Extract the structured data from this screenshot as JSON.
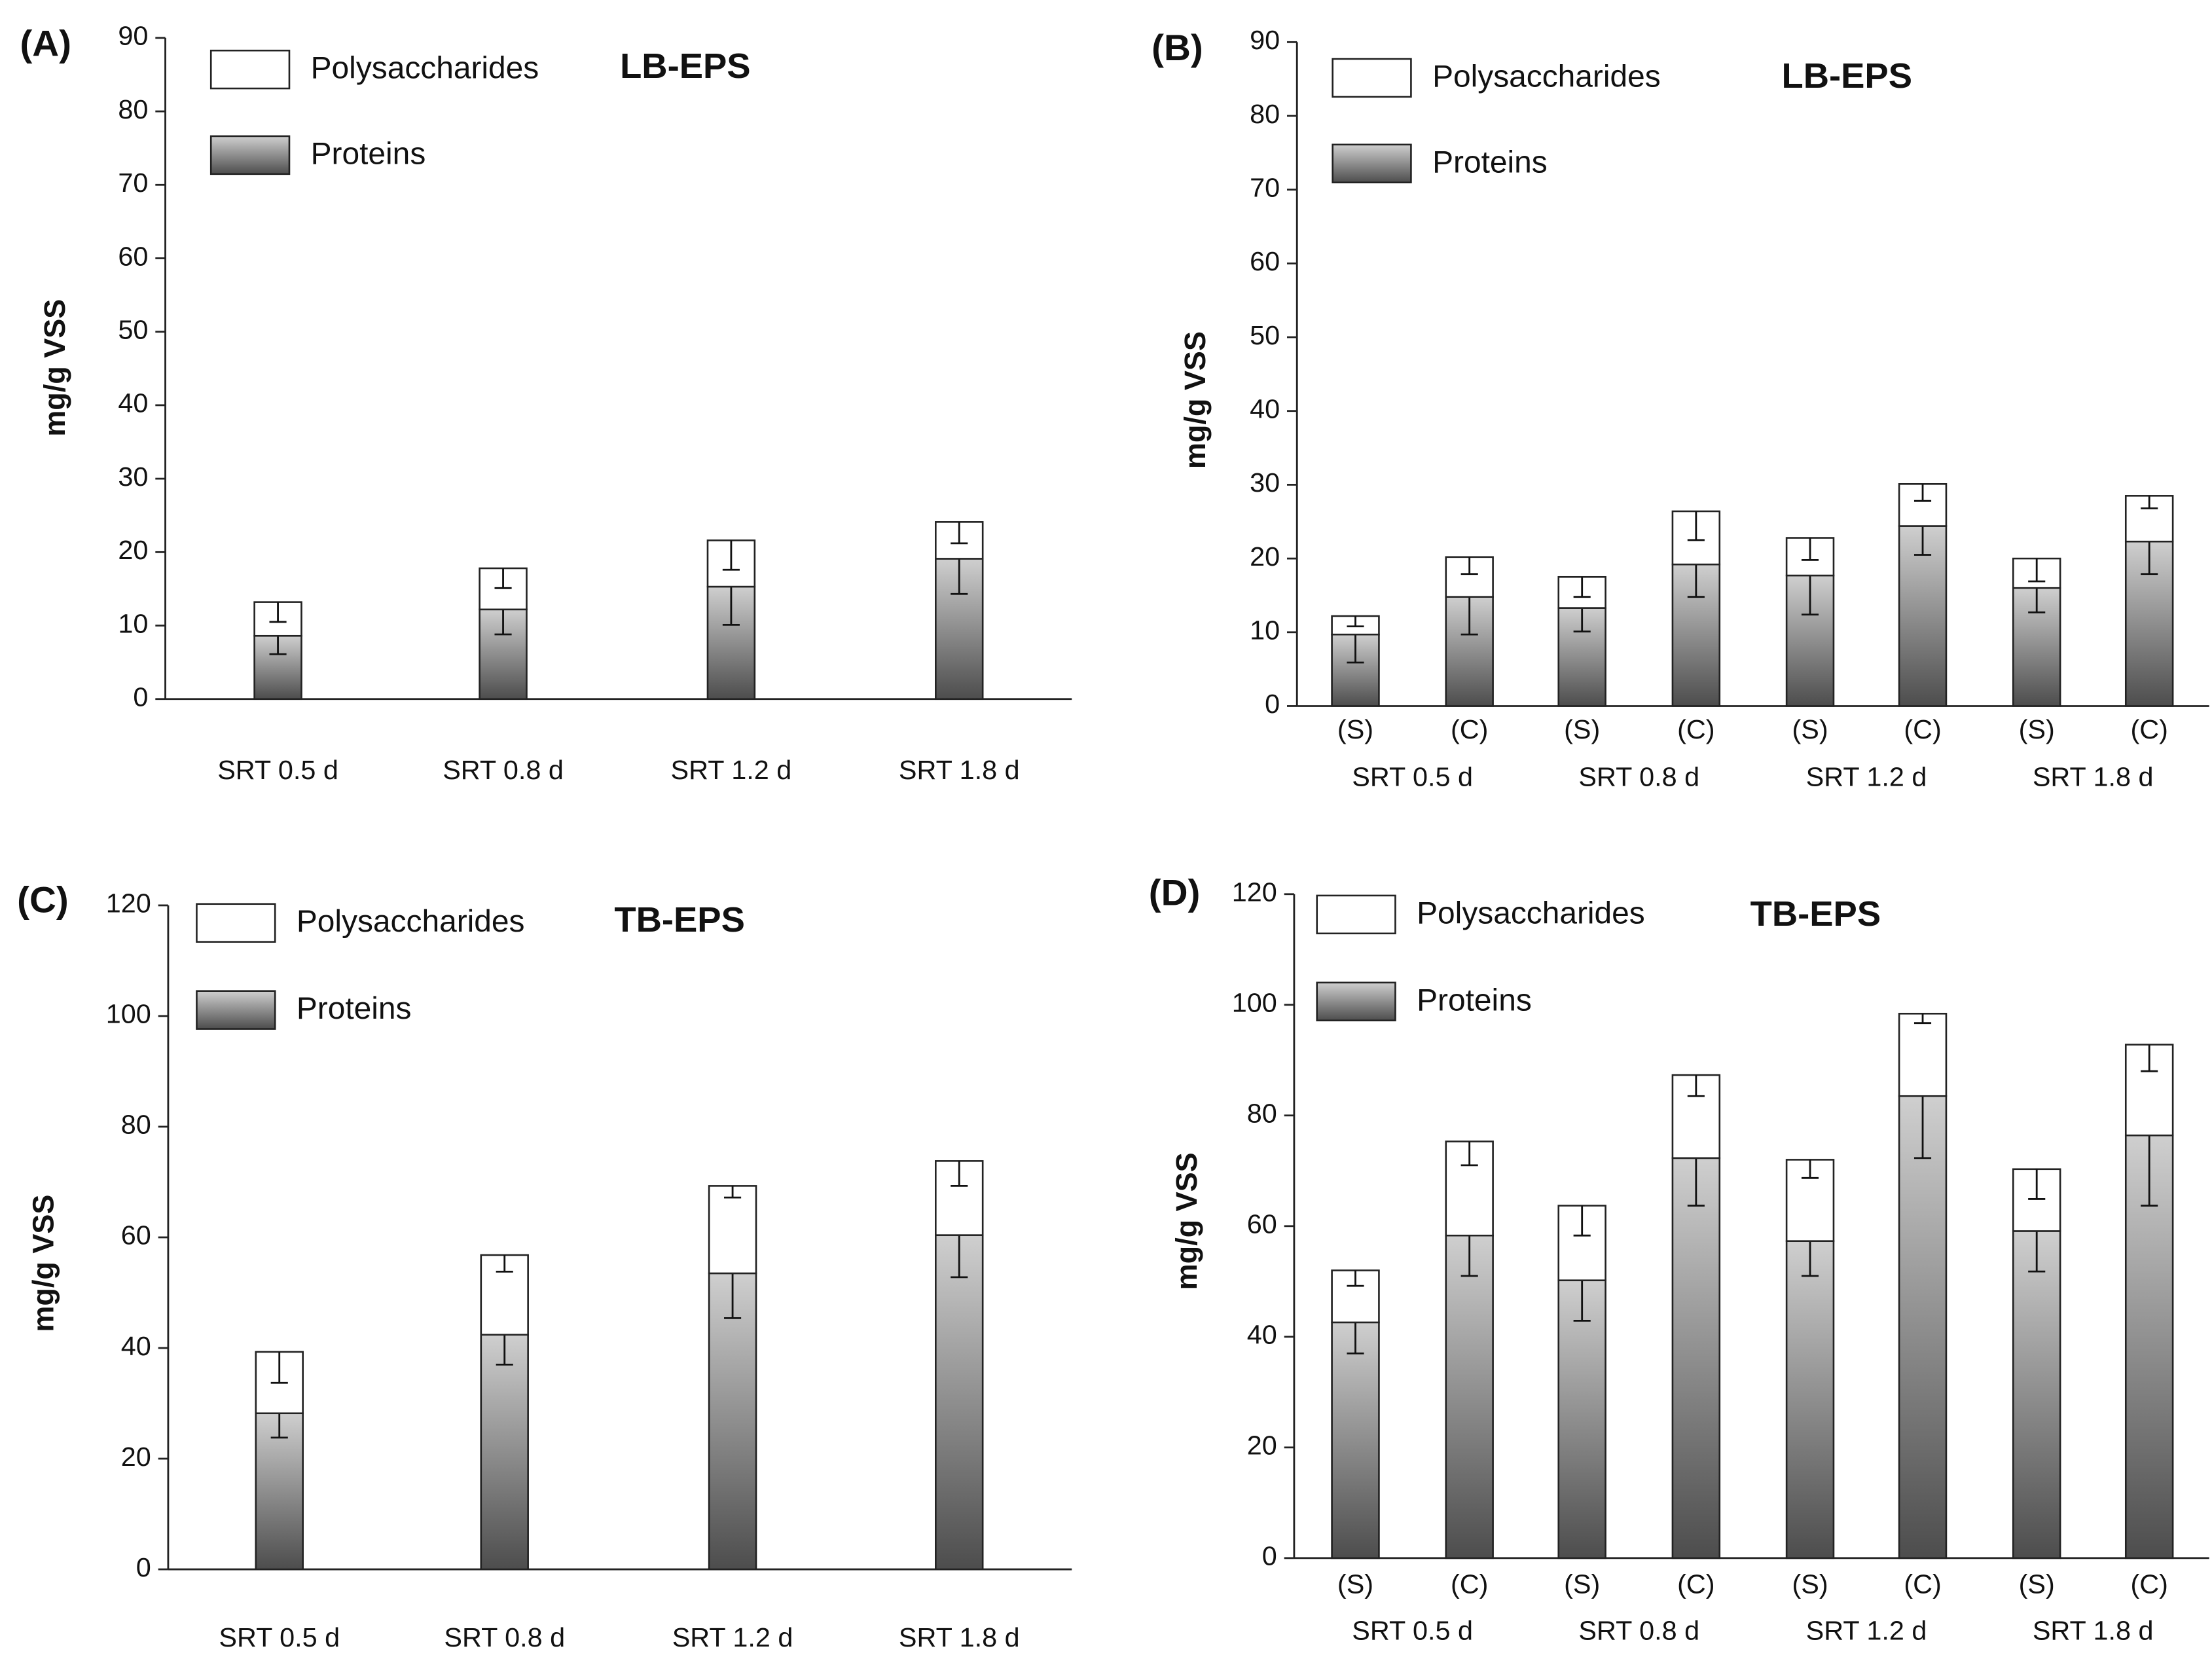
{
  "chart_data": [
    {
      "type": "stacked-bar",
      "panel": "(A)",
      "title": "LB-EPS",
      "ylabel": "mg/g VSS",
      "categories": [
        "SRT 0.5 d",
        "SRT 0.8 d",
        "SRT 1.2 d",
        "SRT 1.8 d"
      ],
      "ylim": [
        0,
        90
      ],
      "yticks": [
        0,
        10,
        20,
        30,
        40,
        50,
        60,
        70,
        80,
        90
      ],
      "series": [
        {
          "name": "Polysaccharides",
          "color": "#ffffff",
          "values": [
            4.6,
            5.6,
            6.3,
            5.0
          ],
          "errors": [
            2.7,
            2.7,
            4.0,
            2.9
          ]
        },
        {
          "name": "Proteins",
          "color": "#4d4d4d",
          "values": [
            8.6,
            12.2,
            15.3,
            19.1
          ],
          "errors": [
            2.5,
            3.4,
            5.2,
            4.8
          ]
        }
      ]
    },
    {
      "type": "stacked-bar",
      "panel": "(B)",
      "title": "LB-EPS",
      "ylabel": "mg/g VSS",
      "categories": [
        "(S)",
        "(C)",
        "(S)",
        "(C)",
        "(S)",
        "(C)",
        "(S)",
        "(C)"
      ],
      "groups": [
        "SRT 0.5 d",
        "SRT 0.8 d",
        "SRT 1.2 d",
        "SRT 1.8 d"
      ],
      "ylim": [
        0,
        90
      ],
      "yticks": [
        0,
        10,
        20,
        30,
        40,
        50,
        60,
        70,
        80,
        90
      ],
      "series": [
        {
          "name": "Polysaccharides",
          "color": "#ffffff",
          "values": [
            2.5,
            5.4,
            4.2,
            7.2,
            5.1,
            5.7,
            4.0,
            6.2
          ],
          "errors": [
            1.4,
            2.3,
            2.7,
            3.9,
            3.0,
            2.3,
            3.1,
            1.7
          ]
        },
        {
          "name": "Proteins",
          "color": "#4d4d4d",
          "values": [
            9.7,
            14.8,
            13.3,
            19.2,
            17.7,
            24.4,
            16.0,
            22.3
          ],
          "errors": [
            3.8,
            5.1,
            3.2,
            4.4,
            5.3,
            3.9,
            3.3,
            4.4
          ]
        }
      ]
    },
    {
      "type": "stacked-bar",
      "panel": "(C)",
      "title": "TB-EPS",
      "ylabel": "mg/g VSS",
      "categories": [
        "SRT 0.5 d",
        "SRT 0.8 d",
        "SRT 1.2 d",
        "SRT 1.8 d"
      ],
      "ylim": [
        0,
        120
      ],
      "yticks": [
        0,
        20,
        40,
        60,
        80,
        100,
        120
      ],
      "series": [
        {
          "name": "Polysaccharides",
          "color": "#ffffff",
          "values": [
            11.1,
            14.4,
            15.8,
            13.4
          ],
          "errors": [
            5.6,
            3.0,
            2.1,
            4.5
          ]
        },
        {
          "name": "Proteins",
          "color": "#4d4d4d",
          "values": [
            28.2,
            42.4,
            53.5,
            60.4
          ],
          "errors": [
            4.4,
            5.4,
            8.1,
            7.6
          ]
        }
      ]
    },
    {
      "type": "stacked-bar",
      "panel": "(D)",
      "title": "TB-EPS",
      "ylabel": "mg/g VSS",
      "categories": [
        "(S)",
        "(C)",
        "(S)",
        "(C)",
        "(S)",
        "(C)",
        "(S)",
        "(C)"
      ],
      "groups": [
        "SRT 0.5 d",
        "SRT 0.8 d",
        "SRT 1.2 d",
        "SRT 1.8 d"
      ],
      "ylim": [
        0,
        120
      ],
      "yticks": [
        0,
        20,
        40,
        60,
        80,
        100,
        120
      ],
      "series": [
        {
          "name": "Polysaccharides",
          "color": "#ffffff",
          "values": [
            9.4,
            17.0,
            13.5,
            15.0,
            14.7,
            14.9,
            11.2,
            16.4
          ],
          "errors": [
            2.8,
            4.3,
            5.4,
            3.8,
            3.3,
            1.7,
            5.4,
            4.8
          ]
        },
        {
          "name": "Proteins",
          "color": "#4d4d4d",
          "values": [
            42.6,
            58.3,
            50.2,
            72.3,
            57.3,
            83.5,
            59.1,
            76.4
          ],
          "errors": [
            5.6,
            7.3,
            7.3,
            8.6,
            6.3,
            11.2,
            7.3,
            12.7
          ]
        }
      ]
    }
  ]
}
